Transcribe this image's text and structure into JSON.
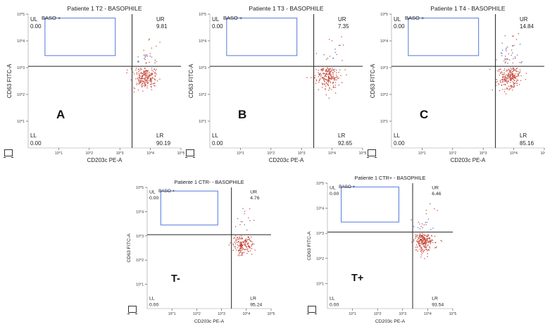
{
  "chart_data": [
    {
      "type": "scatter",
      "id": "A",
      "title": "Patiente 1 T2 - BASOPHILE",
      "xlabel": "CD203c PE-A",
      "ylabel": "CD63 FITC-A",
      "axis": "log",
      "xlim": [
        1,
        100000
      ],
      "ylim": [
        1,
        100000
      ],
      "gate_label": "BASO +",
      "panel_letter": "A",
      "quadrants": {
        "UL": "0.00",
        "UR": "9.81",
        "LL": "0.00",
        "LR": "90.19"
      },
      "x_ticks": [
        "10^1",
        "10^2",
        "10^3",
        "10^4",
        "10^5"
      ],
      "y_ticks": [
        "10^5",
        "10^4",
        "10^3",
        "10^2",
        "10^1"
      ]
    },
    {
      "type": "scatter",
      "id": "B",
      "title": "Patiente 1 T3 - BASOPHILE",
      "xlabel": "CD203c PE-A",
      "ylabel": "CD63 FITC-A",
      "axis": "log",
      "xlim": [
        1,
        100000
      ],
      "ylim": [
        1,
        100000
      ],
      "gate_label": "BASO +",
      "panel_letter": "B",
      "quadrants": {
        "UL": "0.00",
        "UR": "7.35",
        "LL": "0.00",
        "LR": "92.65"
      },
      "x_ticks": [
        "10^1",
        "10^2",
        "10^3",
        "10^4",
        "10^5"
      ],
      "y_ticks": [
        "10^5",
        "10^4",
        "10^3",
        "10^2",
        "10^1"
      ]
    },
    {
      "type": "scatter",
      "id": "C",
      "title": "Patiente 1 T4 - BASOPHILE",
      "xlabel": "CD203c PE-A",
      "ylabel": "CD63 FITC-A",
      "axis": "log",
      "xlim": [
        1,
        100000
      ],
      "ylim": [
        1,
        100000
      ],
      "gate_label": "BASO +",
      "panel_letter": "C",
      "quadrants": {
        "UL": "0.00",
        "UR": "14.84",
        "LL": "0.00",
        "LR": "85.16"
      },
      "x_ticks": [
        "10^1",
        "10^2",
        "10^3",
        "10^4",
        "10^5"
      ],
      "y_ticks": [
        "10^5",
        "10^4",
        "10^3",
        "10^2",
        "10^1"
      ]
    },
    {
      "type": "scatter",
      "id": "T-",
      "title": "Patiente 1 CTR- - BASOPHILE",
      "xlabel": "CD203c PE-A",
      "ylabel": "CD63 FITC-A",
      "axis": "log",
      "xlim": [
        1,
        100000
      ],
      "ylim": [
        1,
        100000
      ],
      "gate_label": "BASO +",
      "panel_letter": "T-",
      "quadrants": {
        "UL": "0.00",
        "UR": "4.76",
        "LL": "0.00",
        "LR": "95.24"
      },
      "x_ticks": [
        "10^1",
        "10^2",
        "10^3",
        "10^4",
        "10^5"
      ],
      "y_ticks": [
        "10^5",
        "10^4",
        "10^3",
        "10^2",
        "10^1"
      ]
    },
    {
      "type": "scatter",
      "id": "T+",
      "title": "Patiente 1 CTR+ - BASOPHILE",
      "xlabel": "CD203c PE-A",
      "ylabel": "CD63 FITC-A",
      "axis": "log",
      "xlim": [
        1,
        100000
      ],
      "ylim": [
        1,
        100000
      ],
      "gate_label": "BASO +",
      "panel_letter": "T+",
      "quadrants": {
        "UL": "0.00",
        "UR": "6.46",
        "LL": "0.00",
        "LR": "93.54"
      },
      "x_ticks": [
        "10^1",
        "10^2",
        "10^3",
        "10^4",
        "10^5"
      ],
      "y_ticks": [
        "10^5",
        "10^4",
        "10^3",
        "10^2",
        "10^1"
      ]
    }
  ],
  "colors": {
    "dots_red": "#c0392b",
    "dots_blue": "#3b5fc0",
    "gate": "#5577dd",
    "axis": "#222222"
  }
}
